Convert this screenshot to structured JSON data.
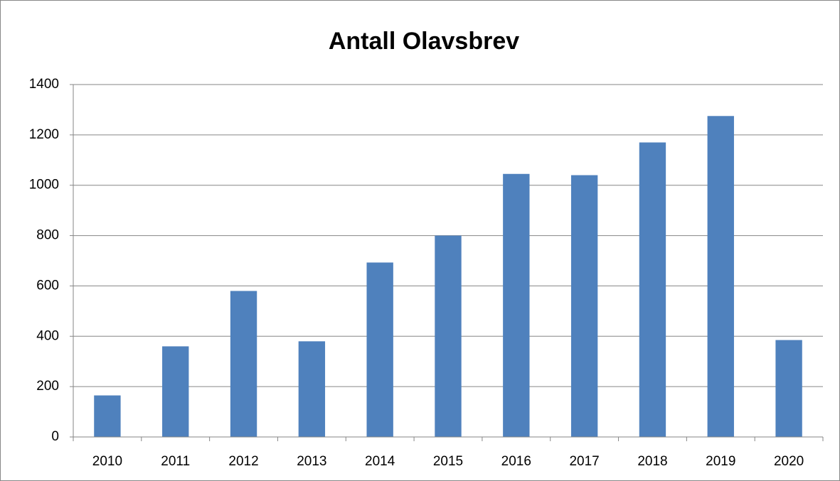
{
  "chart_data": {
    "type": "bar",
    "title": "Antall Olavsbrev",
    "categories": [
      "2010",
      "2011",
      "2012",
      "2013",
      "2014",
      "2015",
      "2016",
      "2017",
      "2018",
      "2019",
      "2020"
    ],
    "values": [
      165,
      360,
      580,
      380,
      693,
      800,
      1045,
      1040,
      1170,
      1275,
      385
    ],
    "color": "#4f81bd",
    "ylim": [
      0,
      1400
    ],
    "yticks": [
      0,
      200,
      400,
      600,
      800,
      1000,
      1200,
      1400
    ],
    "grid": true
  }
}
